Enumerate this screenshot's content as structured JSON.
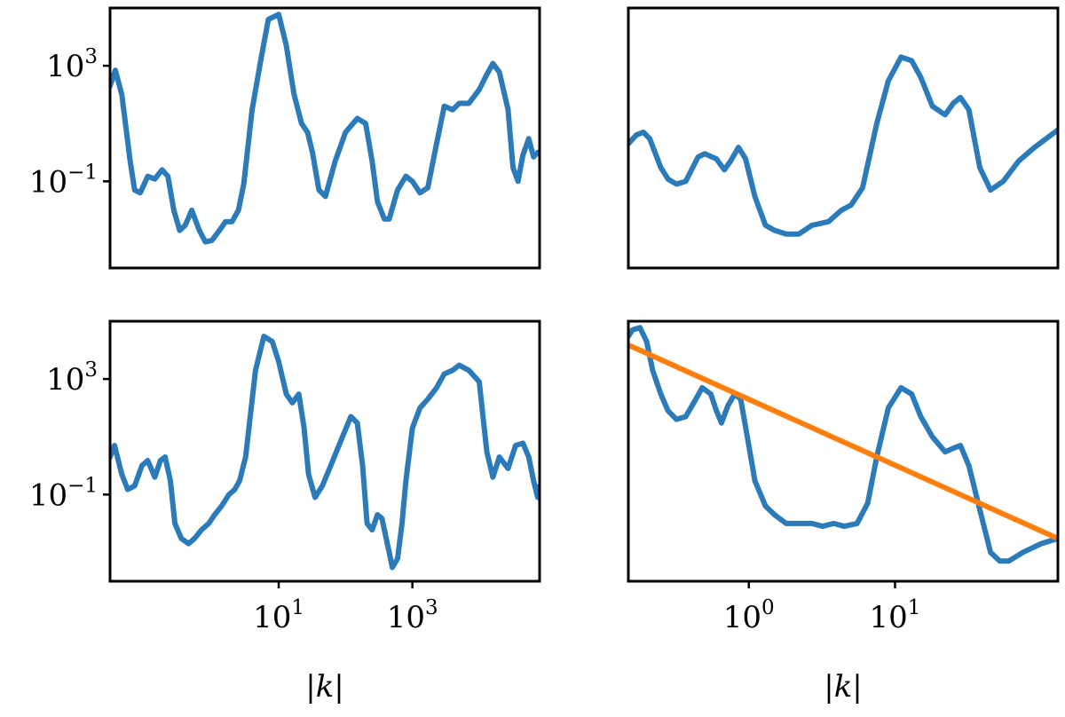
{
  "chart_data": [
    {
      "type": "line",
      "panel": "top-left",
      "xscale": "log",
      "yscale": "log",
      "xlim": [
        0.03,
        80000
      ],
      "ylim": [
        0.0001,
        100000
      ],
      "yticks": [
        {
          "value": 1000,
          "base": "10",
          "exp": "3"
        },
        {
          "value": 0.1,
          "base": "10",
          "exp": "−1"
        }
      ],
      "xticks": [],
      "xlabel": "",
      "series": [
        {
          "color": "#2b7bba",
          "points": [
            [
              0.03,
              200
            ],
            [
              0.036,
              700
            ],
            [
              0.045,
              100
            ],
            [
              0.06,
              0.5
            ],
            [
              0.07,
              0.05
            ],
            [
              0.085,
              0.04
            ],
            [
              0.11,
              0.15
            ],
            [
              0.14,
              0.12
            ],
            [
              0.18,
              0.25
            ],
            [
              0.22,
              0.15
            ],
            [
              0.27,
              0.01
            ],
            [
              0.33,
              0.002
            ],
            [
              0.4,
              0.003
            ],
            [
              0.5,
              0.01
            ],
            [
              0.65,
              0.002
            ],
            [
              0.8,
              0.0008
            ],
            [
              1.0,
              0.0009
            ],
            [
              1.3,
              0.002
            ],
            [
              1.6,
              0.004
            ],
            [
              2.0,
              0.004
            ],
            [
              2.5,
              0.01
            ],
            [
              3.0,
              0.08
            ],
            [
              4.0,
              30
            ],
            [
              5.5,
              2000
            ],
            [
              7.0,
              40000
            ],
            [
              10.0,
              60000
            ],
            [
              13.0,
              5000
            ],
            [
              17.0,
              100
            ],
            [
              22.0,
              10
            ],
            [
              27.0,
              5
            ],
            [
              32.0,
              1
            ],
            [
              40.0,
              0.05
            ],
            [
              50.0,
              0.03
            ],
            [
              70.0,
              0.5
            ],
            [
              100.0,
              5
            ],
            [
              150.0,
              15
            ],
            [
              200.0,
              10
            ],
            [
              250.0,
              0.5
            ],
            [
              300.0,
              0.02
            ],
            [
              380.0,
              0.005
            ],
            [
              450.0,
              0.005
            ],
            [
              600.0,
              0.05
            ],
            [
              800.0,
              0.15
            ],
            [
              1000.0,
              0.1
            ],
            [
              1300.0,
              0.04
            ],
            [
              1700.0,
              0.06
            ],
            [
              2300.0,
              2
            ],
            [
              3000.0,
              40
            ],
            [
              4000.0,
              30
            ],
            [
              5000.0,
              50
            ],
            [
              7000.0,
              50
            ],
            [
              10000.0,
              150
            ],
            [
              13000.0,
              500
            ],
            [
              16000.0,
              1200
            ],
            [
              20000.0,
              600
            ],
            [
              27000.0,
              30
            ],
            [
              32000.0,
              0.3
            ],
            [
              38000.0,
              0.1
            ],
            [
              45000.0,
              0.8
            ],
            [
              55000.0,
              3
            ],
            [
              65000.0,
              0.7
            ],
            [
              75000.0,
              1.0
            ],
            [
              80000.0,
              1.0
            ]
          ]
        }
      ]
    },
    {
      "type": "line",
      "panel": "top-right",
      "xscale": "log",
      "yscale": "log",
      "xlim": [
        0.15,
        130
      ],
      "ylim": [
        0.0001,
        100000
      ],
      "yticks": [],
      "xticks": [],
      "xlabel": "",
      "series": [
        {
          "color": "#2b7bba",
          "points": [
            [
              0.15,
              2
            ],
            [
              0.17,
              4
            ],
            [
              0.19,
              5
            ],
            [
              0.21,
              3
            ],
            [
              0.25,
              0.3
            ],
            [
              0.28,
              0.12
            ],
            [
              0.32,
              0.08
            ],
            [
              0.37,
              0.1
            ],
            [
              0.45,
              0.7
            ],
            [
              0.5,
              0.9
            ],
            [
              0.6,
              0.6
            ],
            [
              0.68,
              0.25
            ],
            [
              0.75,
              0.5
            ],
            [
              0.85,
              1.5
            ],
            [
              0.95,
              0.6
            ],
            [
              1.1,
              0.03
            ],
            [
              1.3,
              0.003
            ],
            [
              1.5,
              0.002
            ],
            [
              1.8,
              0.0015
            ],
            [
              2.2,
              0.0015
            ],
            [
              2.7,
              0.003
            ],
            [
              3.5,
              0.004
            ],
            [
              4.3,
              0.01
            ],
            [
              5.0,
              0.015
            ],
            [
              6.0,
              0.06
            ],
            [
              7.5,
              10
            ],
            [
              9.0,
              300
            ],
            [
              11.0,
              2000
            ],
            [
              13.0,
              1500
            ],
            [
              15.0,
              400
            ],
            [
              18.0,
              40
            ],
            [
              22.0,
              20
            ],
            [
              25.0,
              50
            ],
            [
              28.0,
              80
            ],
            [
              32.0,
              30
            ],
            [
              38.0,
              0.3
            ],
            [
              45.0,
              0.05
            ],
            [
              55.0,
              0.1
            ],
            [
              70.0,
              0.5
            ],
            [
              90.0,
              1.5
            ],
            [
              130.0,
              6
            ]
          ]
        }
      ]
    },
    {
      "type": "line",
      "panel": "bottom-left",
      "xscale": "log",
      "yscale": "log",
      "xlim": [
        0.03,
        80000
      ],
      "ylim": [
        0.0001,
        100000
      ],
      "yticks": [
        {
          "value": 1000,
          "base": "10",
          "exp": "3"
        },
        {
          "value": 0.1,
          "base": "10",
          "exp": "−1"
        }
      ],
      "xticks": [
        {
          "value": 10,
          "base": "10",
          "exp": "1"
        },
        {
          "value": 1000,
          "base": "10",
          "exp": "3"
        }
      ],
      "xlabel": "|k|",
      "series": [
        {
          "color": "#2b7bba",
          "points": [
            [
              0.03,
              2
            ],
            [
              0.035,
              5
            ],
            [
              0.045,
              0.5
            ],
            [
              0.055,
              0.15
            ],
            [
              0.07,
              0.2
            ],
            [
              0.09,
              1
            ],
            [
              0.11,
              1.5
            ],
            [
              0.14,
              0.4
            ],
            [
              0.17,
              1.5
            ],
            [
              0.2,
              2
            ],
            [
              0.24,
              0.3
            ],
            [
              0.28,
              0.01
            ],
            [
              0.35,
              0.003
            ],
            [
              0.45,
              0.002
            ],
            [
              0.55,
              0.003
            ],
            [
              0.7,
              0.006
            ],
            [
              0.9,
              0.01
            ],
            [
              1.1,
              0.02
            ],
            [
              1.4,
              0.04
            ],
            [
              1.8,
              0.1
            ],
            [
              2.2,
              0.15
            ],
            [
              2.6,
              0.3
            ],
            [
              3.2,
              2
            ],
            [
              4.5,
              2000
            ],
            [
              6.0,
              30000
            ],
            [
              8.0,
              20000
            ],
            [
              10.0,
              4000
            ],
            [
              13.0,
              300
            ],
            [
              16.0,
              150
            ],
            [
              20.0,
              300
            ],
            [
              24.0,
              20
            ],
            [
              28.0,
              0.5
            ],
            [
              35.0,
              0.08
            ],
            [
              45.0,
              0.2
            ],
            [
              60.0,
              1
            ],
            [
              90.0,
              10
            ],
            [
              120.0,
              50
            ],
            [
              150.0,
              30
            ],
            [
              180.0,
              1
            ],
            [
              210.0,
              0.01
            ],
            [
              250.0,
              0.006
            ],
            [
              300.0,
              0.02
            ],
            [
              350.0,
              0.015
            ],
            [
              450.0,
              0.001
            ],
            [
              500.0,
              0.0003
            ],
            [
              600.0,
              0.0006
            ],
            [
              700.0,
              0.01
            ],
            [
              800.0,
              0.3
            ],
            [
              1000.0,
              20
            ],
            [
              1300.0,
              100
            ],
            [
              1700.0,
              200
            ],
            [
              2300.0,
              500
            ],
            [
              3000.0,
              1500
            ],
            [
              4000.0,
              2000
            ],
            [
              5000.0,
              3000
            ],
            [
              7000.0,
              2000
            ],
            [
              10000.0,
              800
            ],
            [
              13000.0,
              3
            ],
            [
              16000.0,
              0.4
            ],
            [
              20000.0,
              2
            ],
            [
              27000.0,
              0.8
            ],
            [
              35000.0,
              5
            ],
            [
              45000.0,
              6
            ],
            [
              55000.0,
              2
            ],
            [
              65000.0,
              0.3
            ],
            [
              75000.0,
              0.08
            ],
            [
              80000.0,
              0.2
            ]
          ]
        }
      ]
    },
    {
      "type": "line",
      "panel": "bottom-right",
      "xscale": "log",
      "yscale": "log",
      "xlim": [
        0.15,
        130
      ],
      "ylim": [
        0.0001,
        100000
      ],
      "yticks": [],
      "xticks": [
        {
          "value": 1,
          "base": "10",
          "exp": "0"
        },
        {
          "value": 10,
          "base": "10",
          "exp": "1"
        }
      ],
      "xlabel": "|k|",
      "series": [
        {
          "color": "#2b7bba",
          "points": [
            [
              0.15,
              30000
            ],
            [
              0.16,
              50000
            ],
            [
              0.18,
              60000
            ],
            [
              0.2,
              20000
            ],
            [
              0.22,
              2000
            ],
            [
              0.25,
              300
            ],
            [
              0.28,
              80
            ],
            [
              0.32,
              40
            ],
            [
              0.37,
              50
            ],
            [
              0.42,
              150
            ],
            [
              0.48,
              500
            ],
            [
              0.55,
              300
            ],
            [
              0.6,
              80
            ],
            [
              0.65,
              30
            ],
            [
              0.72,
              120
            ],
            [
              0.8,
              300
            ],
            [
              0.88,
              200
            ],
            [
              1.0,
              5
            ],
            [
              1.1,
              0.3
            ],
            [
              1.3,
              0.04
            ],
            [
              1.5,
              0.02
            ],
            [
              1.8,
              0.01
            ],
            [
              2.2,
              0.01
            ],
            [
              2.7,
              0.01
            ],
            [
              3.2,
              0.008
            ],
            [
              3.8,
              0.01
            ],
            [
              4.5,
              0.008
            ],
            [
              5.5,
              0.01
            ],
            [
              6.5,
              0.05
            ],
            [
              7.5,
              2
            ],
            [
              9.0,
              100
            ],
            [
              11.0,
              500
            ],
            [
              13.0,
              300
            ],
            [
              15.0,
              50
            ],
            [
              18.0,
              10
            ],
            [
              22.0,
              3
            ],
            [
              25.0,
              4
            ],
            [
              28.0,
              5
            ],
            [
              32.0,
              1
            ],
            [
              38.0,
              0.03
            ],
            [
              45.0,
              0.001
            ],
            [
              52.0,
              0.0005
            ],
            [
              60.0,
              0.0005
            ],
            [
              75.0,
              0.001
            ],
            [
              100.0,
              0.002
            ],
            [
              130.0,
              0.003
            ]
          ]
        },
        {
          "color": "#ff7f0e",
          "points": [
            [
              0.15,
              15000
            ],
            [
              130.0,
              0.003
            ]
          ]
        }
      ]
    }
  ]
}
